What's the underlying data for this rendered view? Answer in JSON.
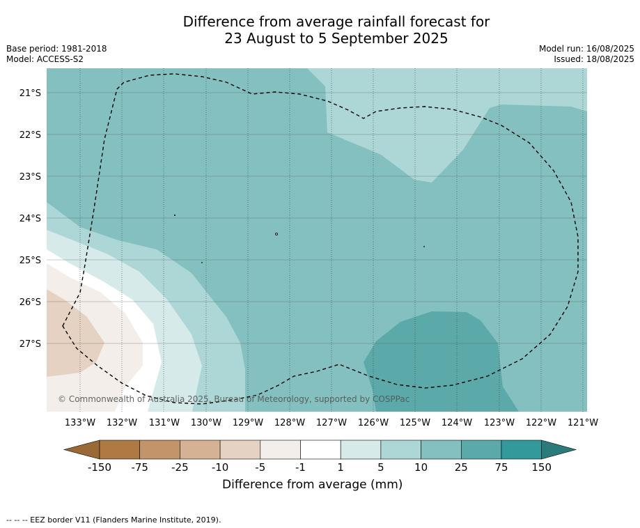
{
  "title_line1": "Difference from average rainfall forecast for",
  "title_line2": "23 August to 5 September 2025",
  "base_period": "Base period: 1981-2018",
  "model": "Model: ACCESS-S2",
  "model_run": "Model run: 16/08/2025",
  "issued": "Issued: 18/08/2025",
  "copyright": "© Commonwealth of Australia 2025, Bureau of Meteorology, supported by COSPPac",
  "lat_labels": [
    "21°S",
    "22°S",
    "23°S",
    "24°S",
    "25°S",
    "26°S",
    "27°S"
  ],
  "lon_labels": [
    "133°W",
    "132°W",
    "131°W",
    "130°W",
    "129°W",
    "128°W",
    "127°W",
    "126°W",
    "125°W",
    "124°W",
    "123°W",
    "122°W",
    "121°W"
  ],
  "colorbar": {
    "labels": [
      "-150",
      "-75",
      "-25",
      "-10",
      "-5",
      "-1",
      "1",
      "5",
      "10",
      "25",
      "75",
      "150"
    ],
    "colors": [
      "#9a6a36",
      "#ae7942",
      "#c39469",
      "#d5b293",
      "#e5d2c2",
      "#f3eee9",
      "#ffffff",
      "#d6eaea",
      "#acd7d6",
      "#83c0bf",
      "#5ba9a8",
      "#34999a",
      "#2a7b7a"
    ],
    "title": "Difference from average (mm)"
  },
  "eez_note": "--  --  -- EEZ border V11 (Flanders Marine Institute, 2019)."
}
